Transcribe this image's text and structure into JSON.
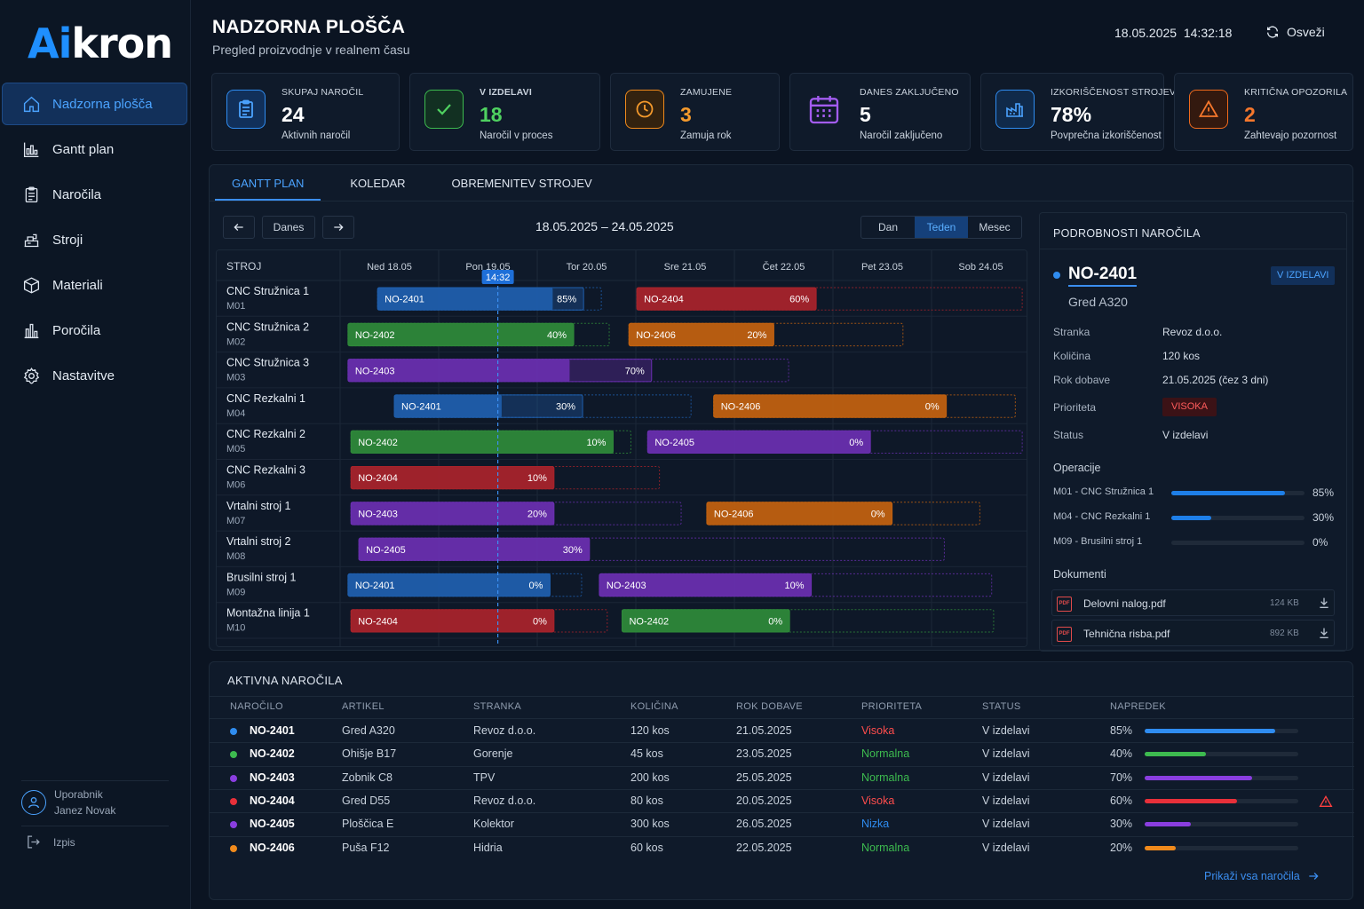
{
  "logo": {
    "first": "Ai",
    "rest": "kron"
  },
  "sidebar": {
    "items": [
      {
        "label": "Nadzorna plošča",
        "icon": "home-icon",
        "active": true
      },
      {
        "label": "Gantt plan",
        "icon": "chart-icon"
      },
      {
        "label": "Naročila",
        "icon": "clipboard-icon"
      },
      {
        "label": "Stroji",
        "icon": "machine-icon"
      },
      {
        "label": "Materiali",
        "icon": "box-icon"
      },
      {
        "label": "Poročila",
        "icon": "bar-chart-icon"
      },
      {
        "label": "Nastavitve",
        "icon": "gear-icon"
      }
    ],
    "user_label": "Uporabnik",
    "user_name": "Janez Novak",
    "logout": "Izpis"
  },
  "header": {
    "title": "NADZORNA PLOŠČA",
    "subtitle": "Pregled proizvodnje v realnem času",
    "date": "18.05.2025",
    "time": "14:32:18",
    "refresh": "Osveži"
  },
  "kpis": [
    {
      "label": "SKUPAJ NAROČIL",
      "value": "24",
      "desc": "Aktivnih naročil",
      "color": "#2f8cf0",
      "icon": "clipboard-icon"
    },
    {
      "label": "V IZDELAVI",
      "value": "18",
      "desc": "Naročil v proces",
      "color": "#3dbb4f",
      "icon": "check-icon"
    },
    {
      "label": "ZAMUJENE",
      "value": "3",
      "desc": "Zamuja rok",
      "color": "#f08a1c",
      "icon": "clock-icon"
    },
    {
      "label": "DANES ZAKLJUČENO",
      "value": "5",
      "desc": "Naročil zaključeno",
      "color": "#9b4dea",
      "icon": "calendar-icon"
    },
    {
      "label": "IZKORIŠČENOST STROJEV",
      "value": "78%",
      "desc": "Povprečna izkoriščenost",
      "color": "#2f8cf0",
      "icon": "factory-icon"
    },
    {
      "label": "KRITIČNA OPOZORILA",
      "value": "2",
      "desc": "Zahtevajo pozornost",
      "color": "#f06a1c",
      "icon": "warning-icon"
    }
  ],
  "tabs": [
    "GANTT PLAN",
    "KOLEDAR",
    "OBREMENITEV STROJEV"
  ],
  "gantt": {
    "today": "Danes",
    "range": "18.05.2025 – 24.05.2025",
    "views": [
      "Dan",
      "Teden",
      "Mesec"
    ],
    "active_view": "Teden",
    "machine_header": "STROJ",
    "days": [
      "Ned 18.05",
      "Pon 19.05",
      "Tor 20.05",
      "Sre 21.05",
      "Čet 22.05",
      "Pet 23.05",
      "Sob 24.05"
    ],
    "now_label": "14:32",
    "now_day": 1.6,
    "colors": {
      "blue": "#1f5fae",
      "green": "#2f8a3a",
      "purple": "#6a2fb0",
      "red": "#a8232b",
      "orange": "#c2620f"
    },
    "rows": [
      {
        "name": "CNC Stružnica 1",
        "code": "M01",
        "bars": [
          {
            "order": "NO-2401",
            "pct": "85%",
            "start": 0.38,
            "end": 2.47,
            "fill": 0.85,
            "color": "blue",
            "outline": 2.65
          },
          {
            "order": "NO-2404",
            "pct": "60%",
            "start": 3.01,
            "end": 4.83,
            "fill": 1,
            "color": "red",
            "outline": 6.92
          }
        ]
      },
      {
        "name": "CNC Stružnica 2",
        "code": "M02",
        "bars": [
          {
            "order": "NO-2402",
            "pct": "40%",
            "start": 0.08,
            "end": 2.37,
            "fill": 1,
            "color": "green",
            "outline": 2.73
          },
          {
            "order": "NO-2406",
            "pct": "20%",
            "start": 2.93,
            "end": 4.4,
            "fill": 1,
            "color": "orange",
            "outline": 5.71
          }
        ]
      },
      {
        "name": "CNC Stružnica 3",
        "code": "M03",
        "bars": [
          {
            "order": "NO-2403",
            "pct": "70%",
            "start": 0.08,
            "end": 3.16,
            "fill": 0.73,
            "color": "purple",
            "outline": 4.55
          }
        ]
      },
      {
        "name": "CNC Rezkalni 1",
        "code": "M04",
        "bars": [
          {
            "order": "NO-2401",
            "pct": "30%",
            "start": 0.55,
            "end": 2.46,
            "fill": 0.57,
            "color": "blue",
            "outline": 3.56
          },
          {
            "order": "NO-2406",
            "pct": "0%",
            "start": 3.79,
            "end": 6.15,
            "fill": 1,
            "color": "orange",
            "outline": 6.85
          }
        ]
      },
      {
        "name": "CNC Rezkalni 2",
        "code": "M05",
        "bars": [
          {
            "order": "NO-2402",
            "pct": "10%",
            "start": 0.11,
            "end": 2.77,
            "fill": 1,
            "color": "green",
            "outline": 2.95
          },
          {
            "order": "NO-2405",
            "pct": "0%",
            "start": 3.12,
            "end": 5.38,
            "fill": 1,
            "color": "purple",
            "outline": 6.92
          }
        ]
      },
      {
        "name": "CNC Rezkalni 3",
        "code": "M06",
        "bars": [
          {
            "order": "NO-2404",
            "pct": "10%",
            "start": 0.11,
            "end": 2.17,
            "fill": 1,
            "color": "red",
            "outline": 3.24
          }
        ]
      },
      {
        "name": "Vrtalni stroj 1",
        "code": "M07",
        "bars": [
          {
            "order": "NO-2403",
            "pct": "20%",
            "start": 0.11,
            "end": 2.17,
            "fill": 1,
            "color": "purple",
            "outline": 3.46
          },
          {
            "order": "NO-2406",
            "pct": "0%",
            "start": 3.72,
            "end": 5.6,
            "fill": 1,
            "color": "orange",
            "outline": 6.49
          }
        ]
      },
      {
        "name": "Vrtalni stroj 2",
        "code": "M08",
        "bars": [
          {
            "order": "NO-2405",
            "pct": "30%",
            "start": 0.19,
            "end": 2.53,
            "fill": 1,
            "color": "purple",
            "outline": 6.13
          }
        ]
      },
      {
        "name": "Brusilni stroj 1",
        "code": "M09",
        "bars": [
          {
            "order": "NO-2401",
            "pct": "0%",
            "start": 0.08,
            "end": 2.13,
            "fill": 1,
            "color": "blue",
            "outline": 2.45
          },
          {
            "order": "NO-2403",
            "pct": "10%",
            "start": 2.63,
            "end": 4.78,
            "fill": 1,
            "color": "purple",
            "outline": 6.61
          }
        ]
      },
      {
        "name": "Montažna linija 1",
        "code": "M10",
        "bars": [
          {
            "order": "NO-2404",
            "pct": "0%",
            "start": 0.11,
            "end": 2.17,
            "fill": 1,
            "color": "red",
            "outline": 2.71
          },
          {
            "order": "NO-2402",
            "pct": "0%",
            "start": 2.86,
            "end": 4.56,
            "fill": 1,
            "color": "green",
            "outline": 6.63
          }
        ]
      }
    ]
  },
  "detail": {
    "title": "PODROBNOSTI NAROČILA",
    "order": "NO-2401",
    "badge": "V IZDELAVI",
    "article": "Gred A320",
    "fields": [
      {
        "k": "Stranka",
        "v": "Revoz d.o.o."
      },
      {
        "k": "Količina",
        "v": "120 kos"
      },
      {
        "k": "Rok dobave",
        "v": "21.05.2025 (čez 3 dni)"
      },
      {
        "k": "Prioriteta",
        "v": "VISOKA"
      },
      {
        "k": "Status",
        "v": "V izdelavi"
      }
    ],
    "ops_title": "Operacije",
    "ops": [
      {
        "label": "M01 - CNC Stružnica 1",
        "pct": "85%",
        "value": 0.85
      },
      {
        "label": "M04 - CNC Rezkalni 1",
        "pct": "30%",
        "value": 0.3
      },
      {
        "label": "M09 - Brusilni stroj 1",
        "pct": "0%",
        "value": 0
      }
    ],
    "docs_title": "Dokumenti",
    "docs": [
      {
        "name": "Delovni nalog.pdf",
        "size": "124 KB"
      },
      {
        "name": "Tehnična risba.pdf",
        "size": "892 KB"
      }
    ]
  },
  "orders": {
    "title": "AKTIVNA NAROČILA",
    "headers": [
      "NAROČILO",
      "ARTIKEL",
      "STRANKA",
      "KOLIČINA",
      "ROK DOBAVE",
      "PRIORITETA",
      "STATUS",
      "NAPREDEK"
    ],
    "rows": [
      {
        "id": "NO-2401",
        "article": "Gred A320",
        "customer": "Revoz d.o.o.",
        "qty": "120 kos",
        "due": "21.05.2025",
        "priority": "Visoka",
        "status": "V izdelavi",
        "progress": "85%",
        "value": 0.85,
        "color": "#2f8cf0",
        "warn": false
      },
      {
        "id": "NO-2402",
        "article": "Ohišje B17",
        "customer": "Gorenje",
        "qty": "45 kos",
        "due": "23.05.2025",
        "priority": "Normalna",
        "status": "V izdelavi",
        "progress": "40%",
        "value": 0.4,
        "color": "#3dbb4f",
        "warn": false
      },
      {
        "id": "NO-2403",
        "article": "Zobnik C8",
        "customer": "TPV",
        "qty": "200 kos",
        "due": "25.05.2025",
        "priority": "Normalna",
        "status": "V izdelavi",
        "progress": "70%",
        "value": 0.7,
        "color": "#8a3ee0",
        "warn": false
      },
      {
        "id": "NO-2404",
        "article": "Gred D55",
        "customer": "Revoz d.o.o.",
        "qty": "80 kos",
        "due": "20.05.2025",
        "priority": "Visoka",
        "status": "V izdelavi",
        "progress": "60%",
        "value": 0.6,
        "color": "#e8303a",
        "warn": true
      },
      {
        "id": "NO-2405",
        "article": "Ploščica E",
        "customer": "Kolektor",
        "qty": "300 kos",
        "due": "26.05.2025",
        "priority": "Nizka",
        "status": "V izdelavi",
        "progress": "30%",
        "value": 0.3,
        "color": "#8a3ee0",
        "warn": false
      },
      {
        "id": "NO-2406",
        "article": "Puša F12",
        "customer": "Hidria",
        "qty": "60 kos",
        "due": "22.05.2025",
        "priority": "Normalna",
        "status": "V izdelavi",
        "progress": "20%",
        "value": 0.2,
        "color": "#f08a1c",
        "warn": false
      }
    ],
    "priority_colors": {
      "Visoka": "#ff4d4d",
      "Normalna": "#3dbb4f",
      "Nizka": "#2f8cf0"
    },
    "more": "Prikaži vsa naročila"
  }
}
